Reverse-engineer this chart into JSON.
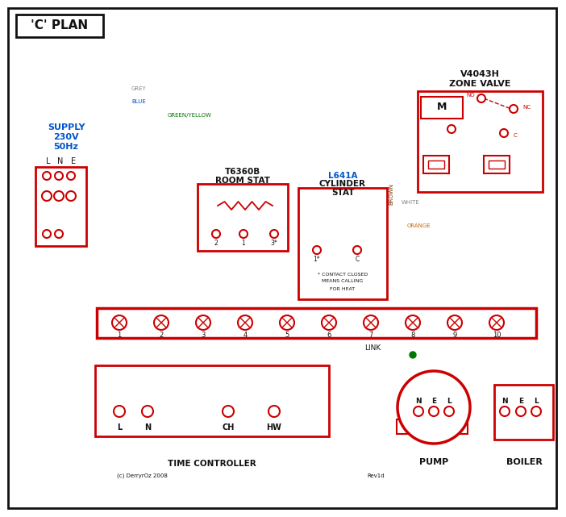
{
  "title": "'C' PLAN",
  "bg": "#ffffff",
  "red": "#cc0000",
  "blue": "#0055cc",
  "green": "#007700",
  "black": "#111111",
  "grey": "#888888",
  "brown": "#6b3300",
  "orange": "#cc6600",
  "white_wire": "#999999",
  "copyright": "(c) DerryrOz 2008",
  "revision": "Rev1d"
}
